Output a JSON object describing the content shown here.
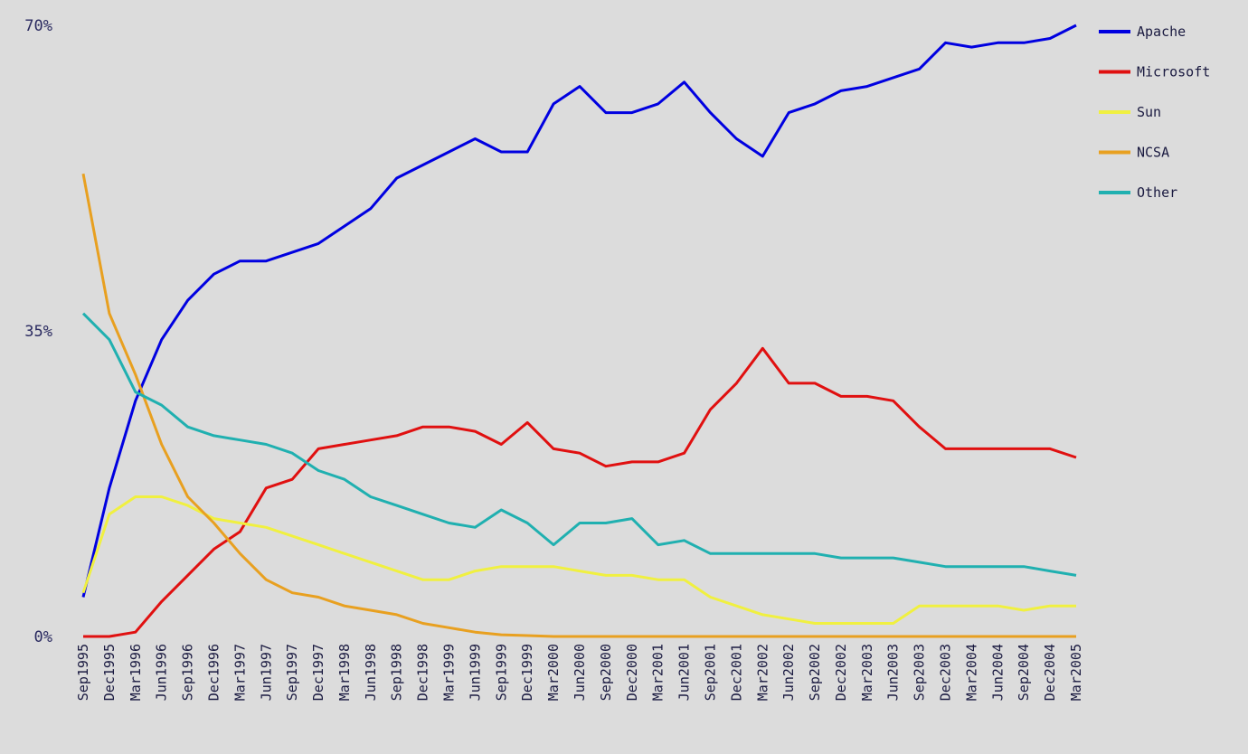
{
  "chart_data": {
    "type": "line",
    "categories": [
      "Sep1995",
      "Dec1995",
      "Mar1996",
      "Jun1996",
      "Sep1996",
      "Dec1996",
      "Mar1997",
      "Jun1997",
      "Sep1997",
      "Dec1997",
      "Mar1998",
      "Jun1998",
      "Sep1998",
      "Dec1998",
      "Mar1999",
      "Jun1999",
      "Sep1999",
      "Dec1999",
      "Mar2000",
      "Jun2000",
      "Sep2000",
      "Dec2000",
      "Mar2001",
      "Jun2001",
      "Sep2001",
      "Dec2001",
      "Mar2002",
      "Jun2002",
      "Sep2002",
      "Dec2002",
      "Mar2003",
      "Jun2003",
      "Sep2003",
      "Dec2003",
      "Mar2004",
      "Jun2004",
      "Sep2004",
      "Dec2004",
      "Mar2005"
    ],
    "series": [
      {
        "name": "Apache",
        "color": "#0000e0",
        "values": [
          4.5,
          17,
          27,
          34,
          38.5,
          41.5,
          43,
          43,
          44,
          45,
          47,
          49,
          52.5,
          54,
          55.5,
          57,
          55.5,
          55.5,
          61,
          63,
          60,
          60,
          61,
          63.5,
          60,
          57,
          55,
          60,
          61,
          62.5,
          63,
          64,
          65,
          68,
          67.5,
          68,
          68,
          68.5,
          70
        ]
      },
      {
        "name": "Microsoft",
        "color": "#e01010",
        "values": [
          0,
          0,
          0.5,
          4,
          7,
          10,
          12,
          17,
          18,
          21.5,
          22,
          22.5,
          23,
          24,
          24,
          23.5,
          22,
          24.5,
          21.5,
          21,
          19.5,
          20,
          20,
          21,
          26,
          29,
          33,
          29,
          29,
          27.5,
          27.5,
          27,
          24,
          21.5,
          21.5,
          21.5,
          21.5,
          21.5,
          20.5
        ]
      },
      {
        "name": "Sun",
        "color": "#f0f040",
        "values": [
          5,
          14,
          16,
          16,
          15,
          13.5,
          13,
          12.5,
          11.5,
          10.5,
          9.5,
          8.5,
          7.5,
          6.5,
          6.5,
          7.5,
          8,
          8,
          8,
          7.5,
          7,
          7,
          6.5,
          6.5,
          4.5,
          3.5,
          2.5,
          2,
          1.5,
          1.5,
          1.5,
          1.5,
          3.5,
          3.5,
          3.5,
          3.5,
          3,
          3.5,
          3.5
        ]
      },
      {
        "name": "NCSA",
        "color": "#e8a020",
        "values": [
          53,
          37,
          30,
          22,
          16,
          13,
          9.5,
          6.5,
          5,
          4.5,
          3.5,
          3,
          2.5,
          1.5,
          1,
          0.5,
          0.2,
          0.1,
          0,
          0,
          0,
          0,
          0,
          0,
          0,
          0,
          0,
          0,
          0,
          0,
          0,
          0,
          0,
          0,
          0,
          0,
          0,
          0,
          0
        ]
      },
      {
        "name": "Other",
        "color": "#20b0b0",
        "values": [
          37,
          34,
          28,
          26.5,
          24,
          23,
          22.5,
          22,
          21,
          19,
          18,
          16,
          15,
          14,
          13,
          12.5,
          14.5,
          13,
          10.5,
          13,
          13,
          13.5,
          10.5,
          11,
          9.5,
          9.5,
          9.5,
          9.5,
          9.5,
          9,
          9,
          9,
          8.5,
          8,
          8,
          8,
          8,
          7.5,
          7
        ]
      }
    ],
    "ylim": [
      0,
      70
    ],
    "yticks": [
      {
        "value": 0,
        "label": "0%"
      },
      {
        "value": 35,
        "label": "35%"
      },
      {
        "value": 70,
        "label": "70%"
      }
    ]
  }
}
